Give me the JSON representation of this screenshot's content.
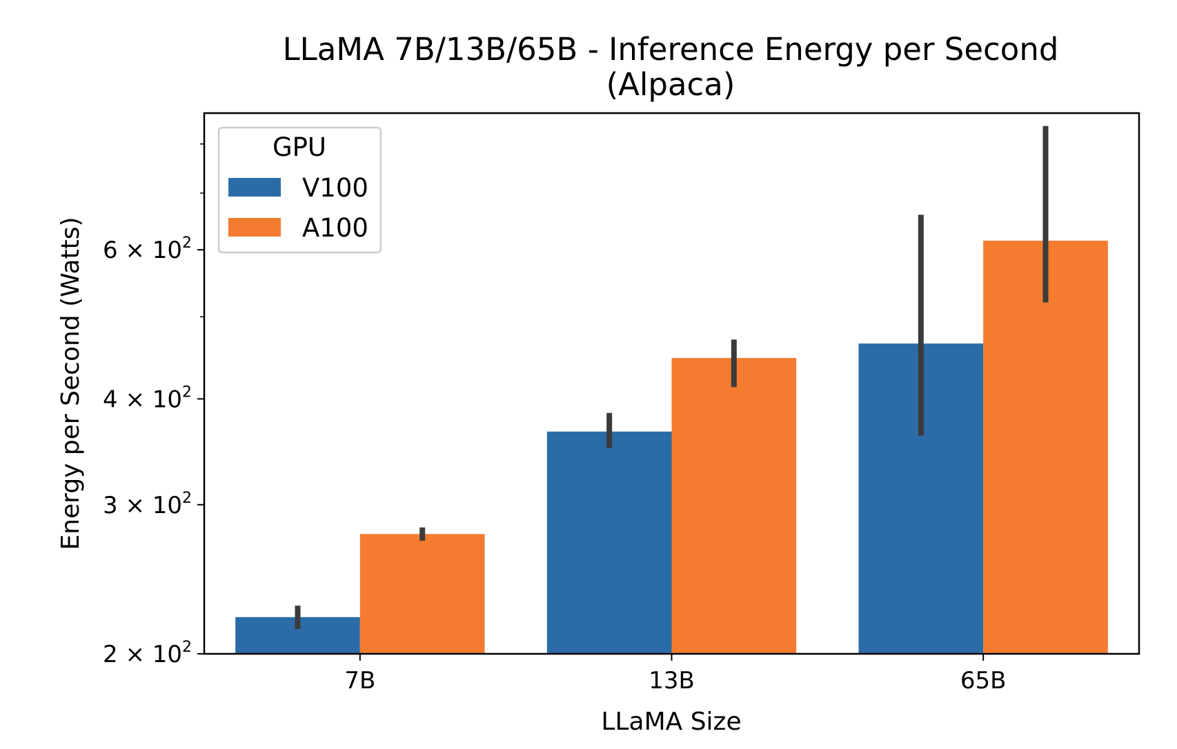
{
  "chart_data": {
    "type": "bar",
    "title_line1": "LLaMA 7B/13B/65B - Inference Energy per Second",
    "title_line2": "(Alpaca)",
    "xlabel": "LLaMA Size",
    "ylabel": "Energy per Second (Watts)",
    "yscale": "log",
    "ylim": [
      200,
      870
    ],
    "yticks": [
      {
        "value": 200,
        "mantissa": "2",
        "base": "10",
        "exp": "2"
      },
      {
        "value": 300,
        "mantissa": "3",
        "base": "10",
        "exp": "2"
      },
      {
        "value": 400,
        "mantissa": "4",
        "base": "10",
        "exp": "2"
      },
      {
        "value": 600,
        "mantissa": "6",
        "base": "10",
        "exp": "2"
      }
    ],
    "minor_yticks": [
      500,
      700,
      800
    ],
    "categories": [
      "7B",
      "13B",
      "65B"
    ],
    "legend": {
      "title": "GPU",
      "placement": "top-left"
    },
    "series": [
      {
        "name": "V100",
        "color": "#2b6ca8",
        "values": [
          221,
          366,
          465
        ],
        "err_low": [
          214,
          350,
          362
        ],
        "err_high": [
          228,
          385,
          660
        ]
      },
      {
        "name": "A100",
        "color": "#f47b2f",
        "values": [
          277,
          447,
          615
        ],
        "err_low": [
          272,
          413,
          520
        ],
        "err_high": [
          282,
          470,
          840
        ]
      }
    ]
  }
}
